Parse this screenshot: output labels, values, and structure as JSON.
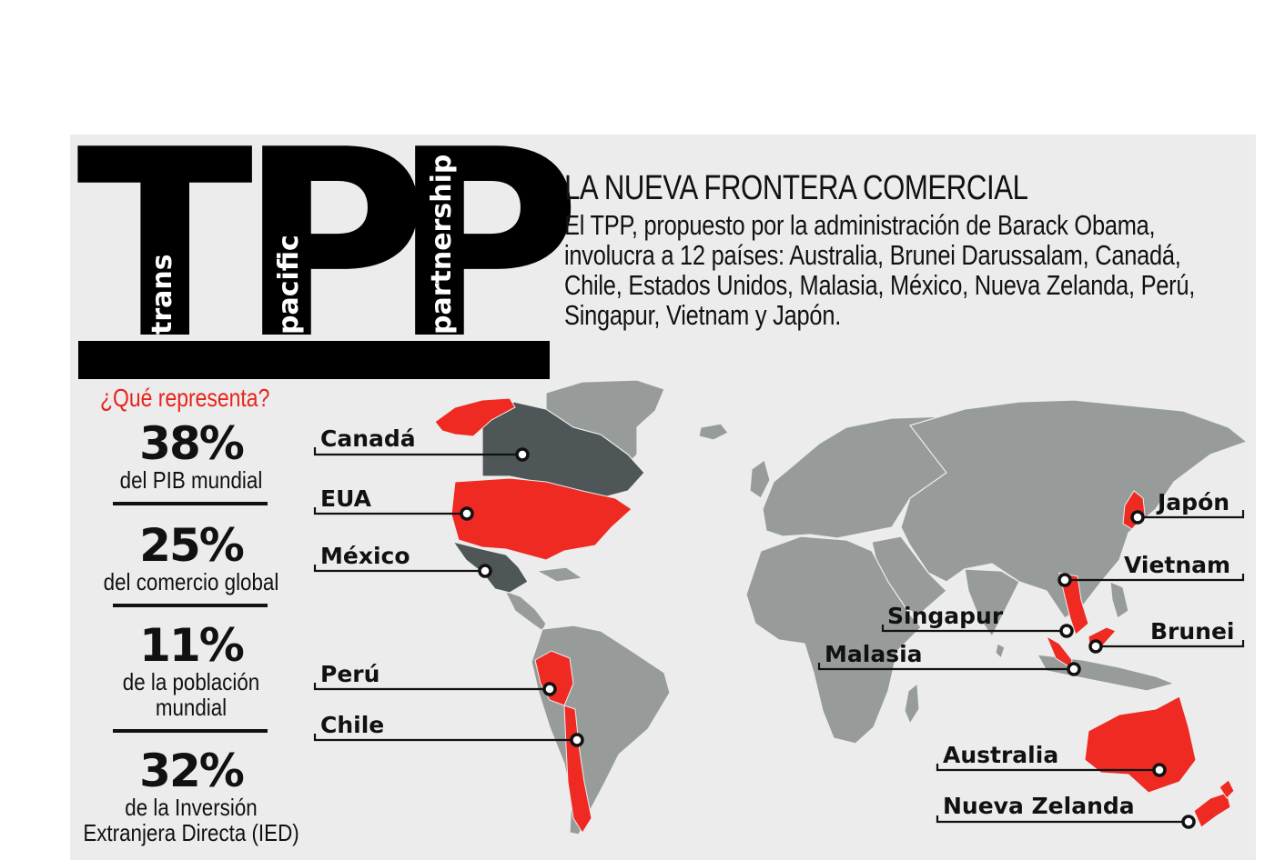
{
  "logo": {
    "letters": [
      "T",
      "P",
      "P"
    ],
    "words": [
      "trans",
      "pacific",
      "partnership"
    ]
  },
  "header": {
    "headline": "LA NUEVA FRONTERA COMERCIAL",
    "intro": "El TPP, propuesto por la administración de Barack Obama, involucra a 12 países: Australia, Brunei Darussalam, Canadá, Chile, Estados Unidos, Malasia, México, Nueva Zelanda, Perú, Singapur, Vietnam y Japón."
  },
  "stats": {
    "title": "¿Qué representa?",
    "items": [
      {
        "value": "38%",
        "desc": "del PIB mundial"
      },
      {
        "value": "25%",
        "desc": "del comercio global"
      },
      {
        "value": "11%",
        "desc": "de la población mundial"
      },
      {
        "value": "32%",
        "desc": "de la Inversión Extranjera Directa (IED)"
      }
    ]
  },
  "map": {
    "highlight_color": "#ee2a22",
    "dark_member_color": "#4e5657",
    "land_color": "#979c9b",
    "countries": {
      "canada": "Canadá",
      "usa": "EUA",
      "mexico": "México",
      "peru": "Perú",
      "chile": "Chile",
      "japan": "Japón",
      "vietnam": "Vietnam",
      "singapore": "Singapur",
      "brunei": "Brunei",
      "malaysia": "Malasia",
      "australia": "Australia",
      "new_zealand": "Nueva Zelanda"
    }
  }
}
